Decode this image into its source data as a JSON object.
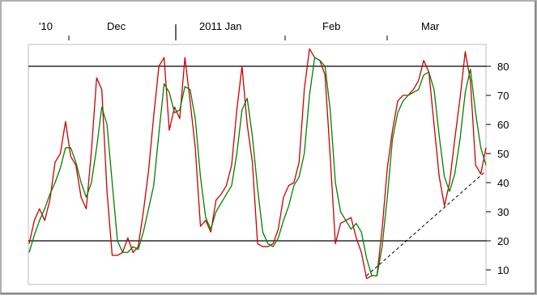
{
  "chart_data": {
    "type": "line",
    "title": "",
    "xlabel": "",
    "ylabel": "",
    "x_tick_labels": [
      "'10",
      "Dec",
      "2011 Jan",
      "Feb",
      "Mar"
    ],
    "y_ticks": [
      10,
      20,
      30,
      40,
      50,
      60,
      70,
      80
    ],
    "ylim": [
      4,
      88
    ],
    "reference_lines": [
      80,
      20
    ],
    "grid": false,
    "legend": "none",
    "series": [
      {
        "color": "#cc0000",
        "values": [
          19,
          27,
          31,
          27,
          34,
          47,
          50,
          61,
          49,
          46,
          35,
          31,
          51,
          76,
          72,
          37,
          15,
          15,
          16,
          21,
          16,
          18,
          30,
          44,
          63,
          80,
          83,
          58,
          66,
          62,
          83,
          68,
          52,
          25,
          27,
          23,
          34,
          36,
          39,
          46,
          65,
          80,
          60,
          47,
          19,
          18,
          18,
          19,
          24,
          35,
          39,
          40,
          47,
          72,
          86,
          83,
          82,
          77,
          49,
          19,
          26,
          27,
          28,
          21,
          16,
          7,
          8,
          8,
          24,
          45,
          58,
          68,
          70,
          70,
          72,
          75,
          82,
          78,
          60,
          42,
          32,
          40,
          55,
          69,
          85,
          75,
          46,
          43,
          52
        ],
        "markers": [
          {
            "index": 65,
            "label": "",
            "marker": "line"
          }
        ]
      },
      {
        "color": "#008000",
        "values": [
          16,
          22,
          27,
          31,
          36,
          40,
          45,
          52,
          52,
          47,
          40,
          35,
          40,
          52,
          66,
          60,
          40,
          20,
          16,
          16,
          18,
          17,
          23,
          31,
          39,
          57,
          74,
          71,
          64,
          65,
          73,
          72,
          62,
          42,
          28,
          24,
          30,
          33,
          36,
          39,
          50,
          65,
          69,
          56,
          38,
          23,
          19,
          18,
          21,
          27,
          32,
          39,
          42,
          50,
          70,
          83,
          82,
          80,
          65,
          40,
          30,
          27,
          24,
          26,
          23,
          14,
          8,
          8,
          18,
          35,
          55,
          64,
          68,
          70,
          71,
          72,
          77,
          78,
          72,
          56,
          42,
          37,
          43,
          55,
          71,
          79,
          64,
          52,
          46
        ],
        "markers": []
      },
      {
        "color": "#000000",
        "style": "dashed",
        "points": [
          [
            65,
            8
          ],
          [
            88,
            44
          ]
        ]
      }
    ]
  }
}
